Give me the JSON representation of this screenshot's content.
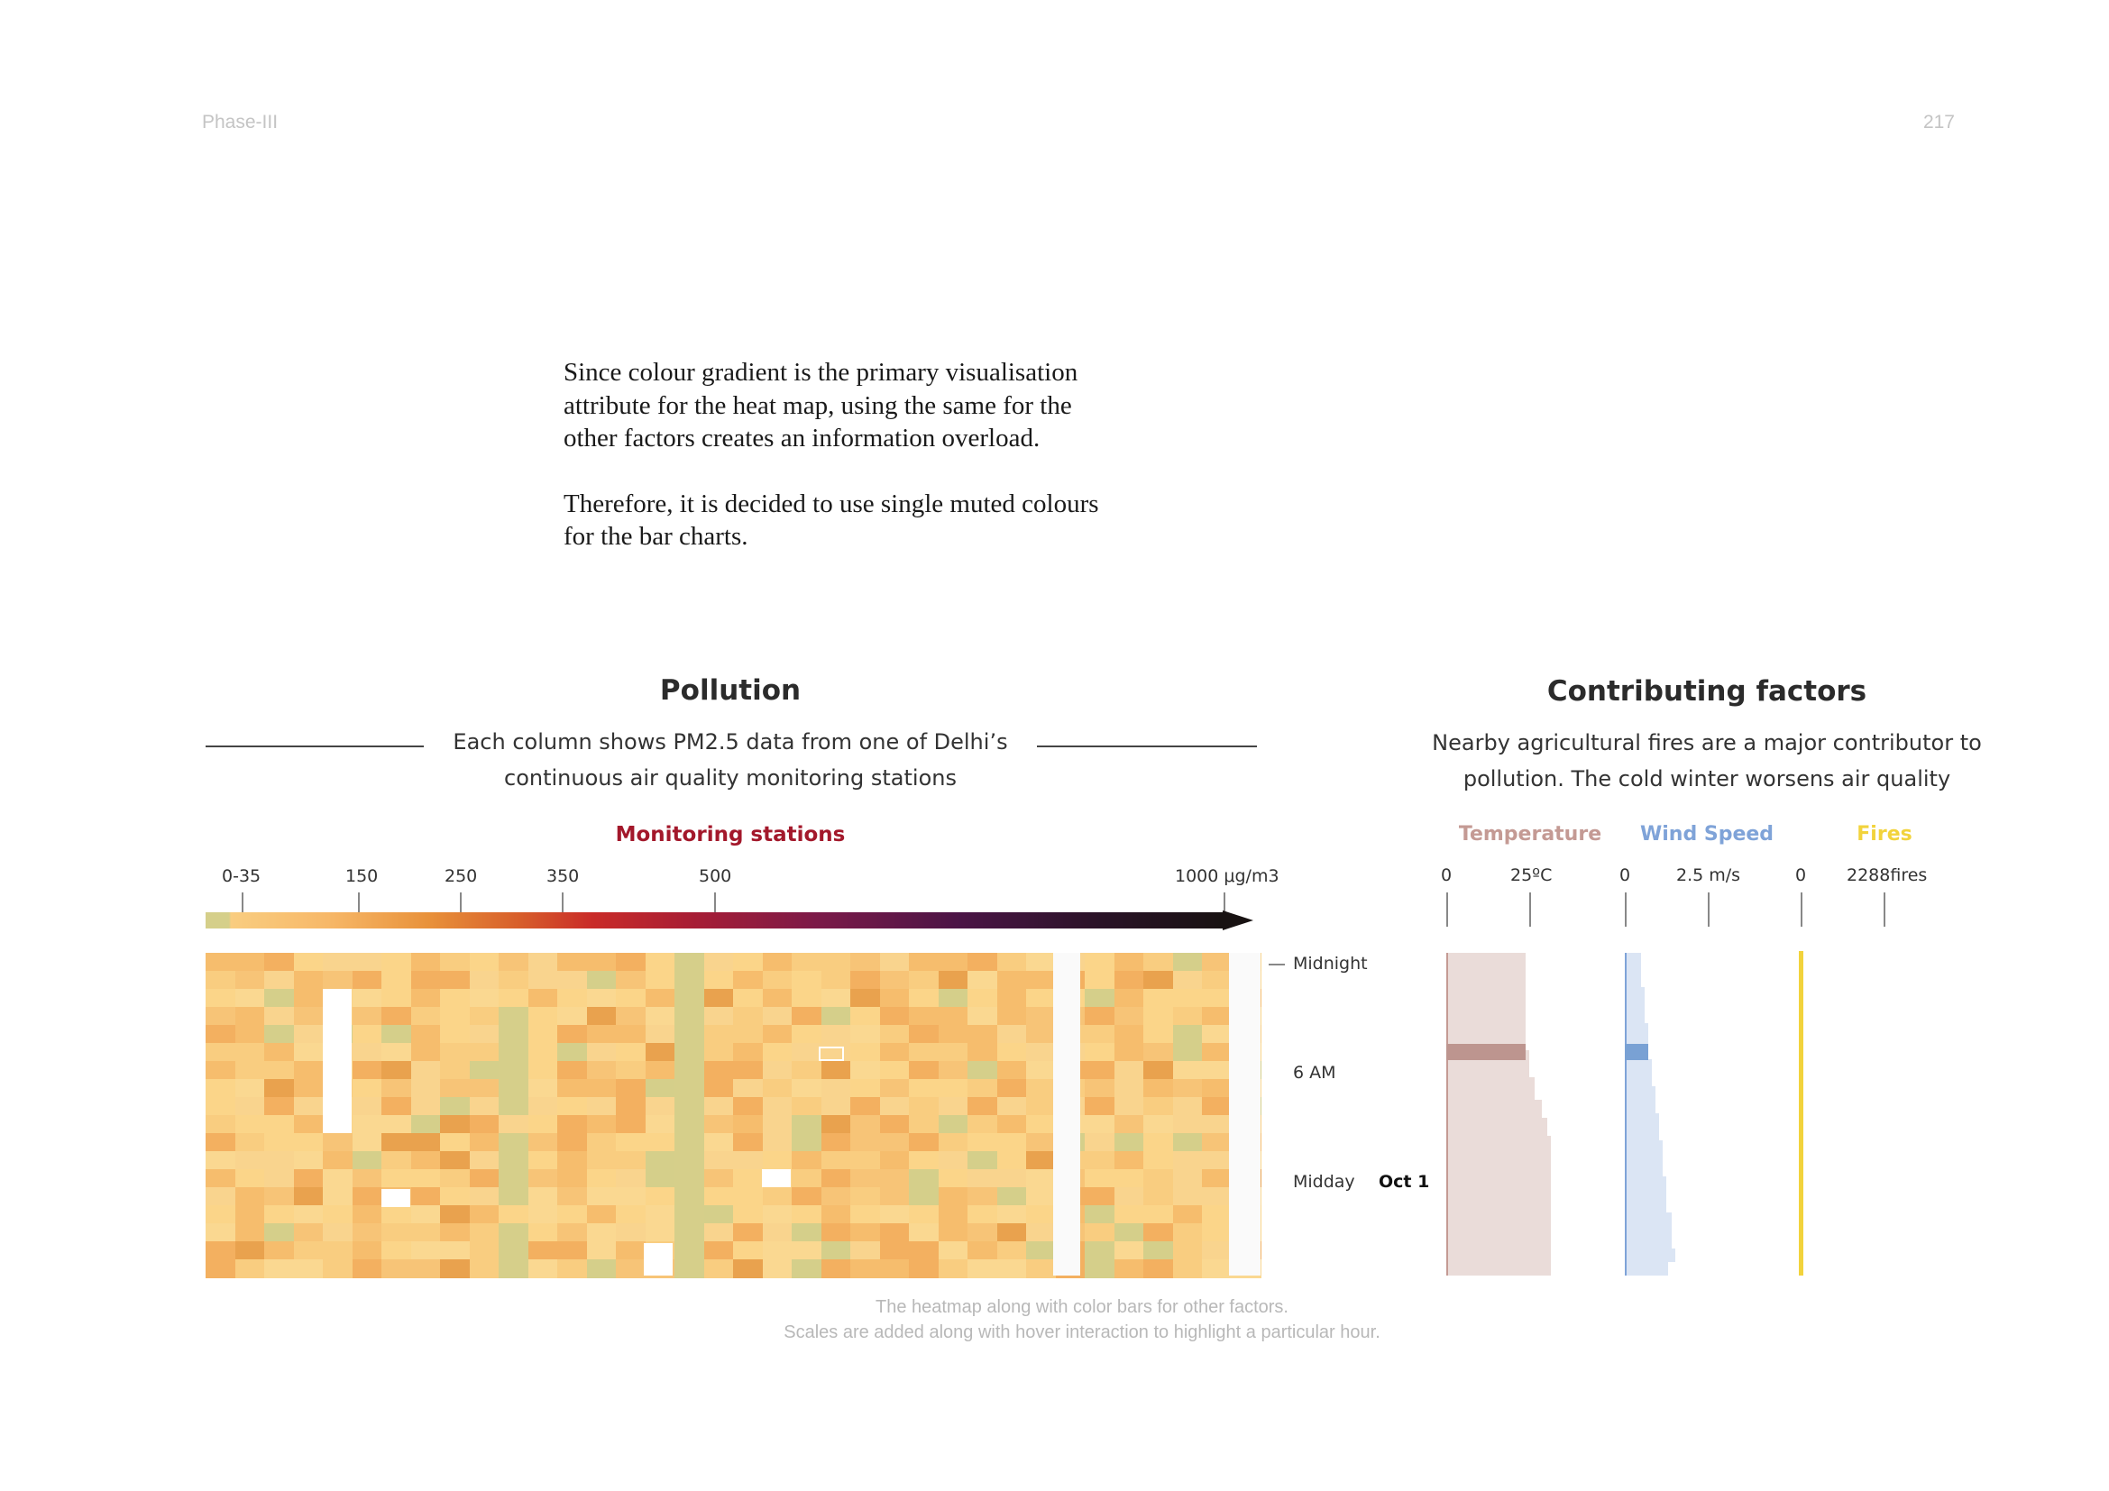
{
  "page": {
    "section": "Phase-III",
    "number": "217"
  },
  "body_text": [
    "Since colour gradient is the primary visualisation attribute for the heat map, using the same for the other factors creates an information overload.",
    "Therefore, it is decided to use single muted colours for the bar charts."
  ],
  "pollution": {
    "title": "Pollution",
    "subtitle_line1": "Each column shows PM2.5 data from one of Delhi’s",
    "subtitle_line2": "continuous air quality monitoring stations",
    "stations_label": "Monitoring stations",
    "scale_ticks": [
      "0-35",
      "150",
      "250",
      "350",
      "500",
      "1000 μg/m3"
    ],
    "hour_labels": [
      "Midnight",
      "6 AM",
      "Midday"
    ],
    "date_label": "Oct 1",
    "colors": {
      "low": "#d5cf8a",
      "mid": "#f9cd80",
      "high": "#e8913a",
      "red": "#c92b28",
      "max": "#181212"
    }
  },
  "factors": {
    "title": "Contributing factors",
    "subtitle_line1": "Nearby agricultural fires are a major contributor to",
    "subtitle_line2": "pollution. The cold winter worsens air quality",
    "temperature": {
      "label": "Temperature",
      "ticks": [
        "0",
        "25ºC"
      ],
      "color": "#c49a94",
      "fill": "#eadcd9",
      "highlight": "#bd958f"
    },
    "wind": {
      "label": "Wind Speed",
      "ticks": [
        "0",
        "2.5 m/s"
      ],
      "color": "#7fa3d8",
      "fill": "#dbe5f4",
      "highlight": "#79a1d4"
    },
    "fires": {
      "label": "Fires",
      "ticks": [
        "0",
        "2288fires"
      ],
      "color": "#f2d33c"
    }
  },
  "caption": {
    "line1": "The heatmap along with color bars for other factors.",
    "line2": "Scales are added along with hover interaction to highlight a particular hour."
  }
}
